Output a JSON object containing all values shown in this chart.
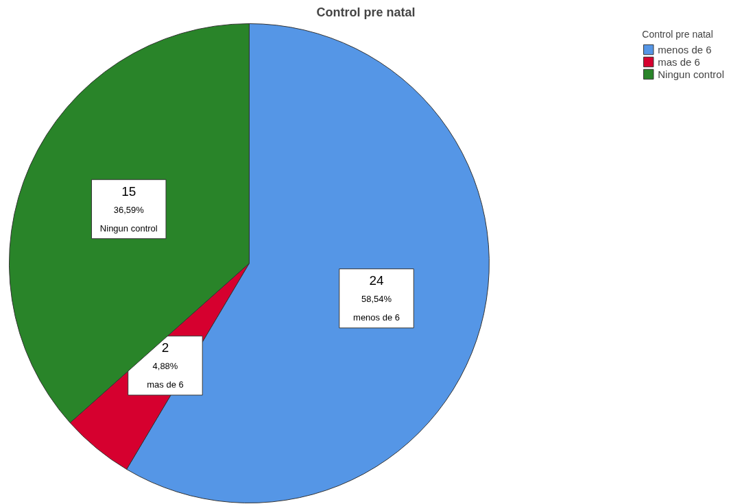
{
  "chart_data": {
    "type": "pie",
    "title": "Control pre natal",
    "legend_title": "Control pre natal",
    "legend": "top right",
    "categories": [
      "menos de 6",
      "mas de 6",
      "Ningun control"
    ],
    "values": [
      58.54,
      4.88,
      36.59
    ],
    "colors": [
      "#5596e6",
      "#d6002f",
      "#298429"
    ],
    "value_labels": [
      "24\n58,54%",
      "2\n4,88%",
      "15\n36,59%"
    ]
  }
}
